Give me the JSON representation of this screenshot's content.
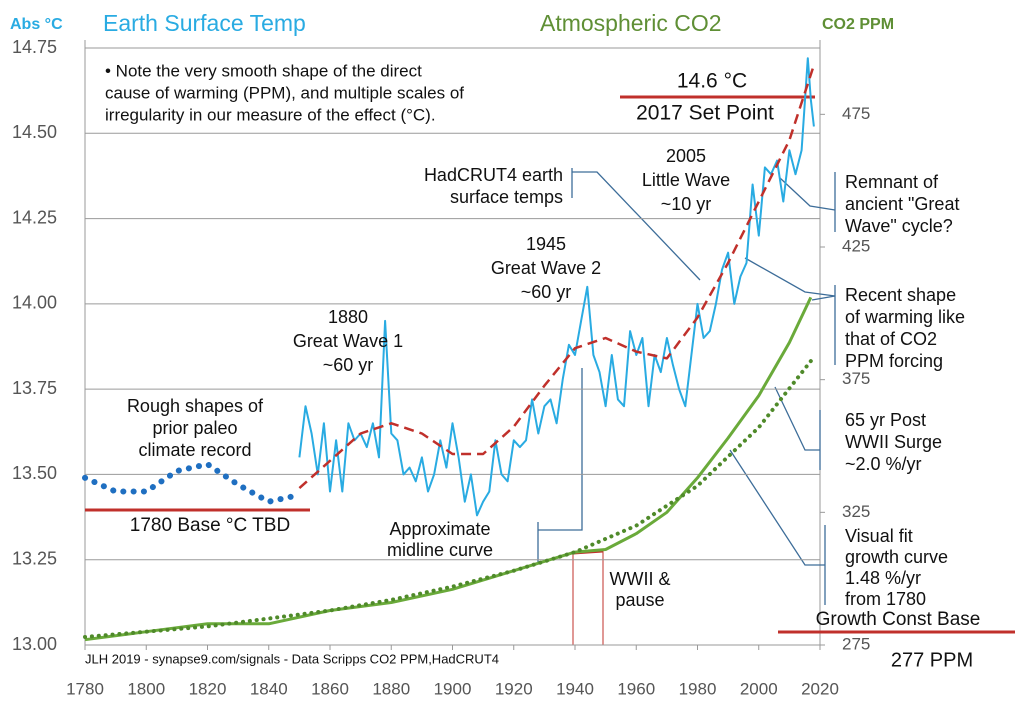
{
  "chart_data": {
    "type": "line",
    "title": "Earth Surface Temp",
    "y_label": "Abs °C",
    "y2_title": "Atmospheric CO2",
    "y2_label": "CO2 PPM",
    "xlim": [
      1780,
      2020
    ],
    "xticks": [
      1780,
      1800,
      1820,
      1840,
      1860,
      1880,
      1900,
      1920,
      1940,
      1960,
      1980,
      2000,
      2020
    ],
    "ylim": [
      13.0,
      14.75
    ],
    "yticks": [
      {
        "value": 13,
        "label": "13.00"
      },
      {
        "value": 13.25,
        "label": "13.25"
      },
      {
        "value": 13.5,
        "label": "13.50"
      },
      {
        "value": 13.75,
        "label": "13.75"
      },
      {
        "value": 14,
        "label": "14.00"
      },
      {
        "value": 14.25,
        "label": "14.25"
      },
      {
        "value": 14.5,
        "label": "14.50"
      },
      {
        "value": 14.75,
        "label": "14.75"
      }
    ],
    "y2lim": [
      275,
      500
    ],
    "y2ticks": [
      275,
      325,
      375,
      425,
      475
    ],
    "grid": true,
    "series": [
      {
        "color": "#29abe2",
        "dash": "solid",
        "width": 2,
        "x": [
          1850,
          1852,
          1854,
          1856,
          1858,
          1860,
          1862,
          1864,
          1866,
          1868,
          1870,
          1872,
          1874,
          1876,
          1878,
          1880,
          1882,
          1884,
          1886,
          1888,
          1890,
          1892,
          1894,
          1896,
          1898,
          1900,
          1902,
          1904,
          1906,
          1908,
          1910,
          1912,
          1914,
          1916,
          1918,
          1920,
          1922,
          1924,
          1926,
          1928,
          1930,
          1932,
          1934,
          1936,
          1938,
          1940,
          1942,
          1944,
          1946,
          1948,
          1950,
          1952,
          1954,
          1956,
          1958,
          1960,
          1962,
          1964,
          1966,
          1968,
          1970,
          1972,
          1974,
          1976,
          1978,
          1980,
          1982,
          1984,
          1986,
          1988,
          1990,
          1992,
          1994,
          1996,
          1998,
          2000,
          2002,
          2004,
          2006,
          2008,
          2010,
          2012,
          2014,
          2016,
          2017,
          2018
        ],
        "values": [
          13.55,
          13.7,
          13.62,
          13.5,
          13.65,
          13.45,
          13.6,
          13.45,
          13.65,
          13.6,
          13.62,
          13.58,
          13.65,
          13.55,
          13.95,
          13.62,
          13.6,
          13.5,
          13.52,
          13.48,
          13.55,
          13.45,
          13.5,
          13.6,
          13.52,
          13.65,
          13.55,
          13.42,
          13.5,
          13.38,
          13.42,
          13.45,
          13.6,
          13.5,
          13.48,
          13.6,
          13.58,
          13.6,
          13.72,
          13.62,
          13.7,
          13.72,
          13.65,
          13.78,
          13.88,
          13.85,
          13.95,
          14.05,
          13.85,
          13.8,
          13.7,
          13.85,
          13.72,
          13.7,
          13.92,
          13.85,
          13.9,
          13.7,
          13.85,
          13.8,
          13.9,
          13.82,
          13.75,
          13.7,
          13.85,
          14.0,
          13.9,
          13.92,
          14.0,
          14.1,
          14.15,
          14.0,
          14.08,
          14.12,
          14.35,
          14.2,
          14.4,
          14.38,
          14.42,
          14.3,
          14.45,
          14.38,
          14.45,
          14.72,
          14.6,
          14.52
        ]
      },
      {
        "color": "#c0302b",
        "dash": "dashed",
        "width": 2.5,
        "x": [
          1850,
          1860,
          1870,
          1880,
          1890,
          1900,
          1910,
          1920,
          1930,
          1940,
          1950,
          1960,
          1970,
          1980,
          1990,
          2000,
          2010,
          2018
        ],
        "values": [
          13.46,
          13.54,
          13.62,
          13.65,
          13.62,
          13.56,
          13.56,
          13.64,
          13.76,
          13.87,
          13.9,
          13.86,
          13.84,
          13.96,
          14.12,
          14.3,
          14.48,
          14.7
        ]
      },
      {
        "color": "#1f6fc1",
        "dash": "dotted",
        "width": 6,
        "x": [
          1780,
          1790,
          1800,
          1810,
          1820,
          1830,
          1840,
          1850
        ],
        "values": [
          13.49,
          13.45,
          13.45,
          13.51,
          13.53,
          13.47,
          13.42,
          13.44
        ]
      },
      {
        "color": "#6aaa3a",
        "dash": "solid",
        "width": 3,
        "axis": "y2",
        "x": [
          1780,
          1800,
          1820,
          1840,
          1860,
          1880,
          1900,
          1920,
          1940,
          1950,
          1960,
          1970,
          1980,
          1990,
          2000,
          2010,
          2017
        ],
        "values": [
          277,
          280,
          283,
          283,
          288,
          291,
          296,
          303,
          310,
          311,
          317,
          325,
          338,
          353,
          369,
          389,
          406
        ]
      },
      {
        "color": "#4f8a2a",
        "dash": "dotted",
        "width": 4,
        "axis": "y2",
        "x": [
          1780,
          1800,
          1820,
          1840,
          1860,
          1880,
          1900,
          1920,
          1940,
          1960,
          1980,
          2000,
          2017
        ],
        "values": [
          278,
          280,
          282,
          285,
          288,
          292,
          297,
          303,
          310,
          320,
          335,
          357,
          382
        ]
      }
    ],
    "annotations": [
      [
        "• Note the very smooth shape of the direct",
        "cause of warming (PPM), and multiple scales of",
        "irregularity in our measure of the effect (°C)."
      ],
      [
        "14.6 °C"
      ],
      [
        "2017 Set Point"
      ],
      [
        "HadCRUT4 earth",
        "surface temps"
      ],
      [
        "2005",
        "Little Wave",
        "~10 yr"
      ],
      [
        "1945",
        "Great Wave 2",
        "~60 yr"
      ],
      [
        "1880",
        "Great Wave 1",
        "~60 yr"
      ],
      [
        "Rough shapes of",
        "prior paleo",
        "climate record"
      ],
      [
        "1780 Base °C TBD"
      ],
      [
        "Approximate",
        "midline curve"
      ],
      [
        "WWII &",
        "pause"
      ],
      [
        "Remnant of",
        "ancient \"Great",
        "Wave\" cycle?"
      ],
      [
        "Recent shape",
        "of warming like",
        "that of CO2",
        "PPM forcing"
      ],
      [
        "65 yr Post",
        "WWII Surge",
        "~2.0 %/yr"
      ],
      [
        "Visual fit",
        "growth curve",
        "1.48 %/yr",
        "from 1780"
      ],
      [
        "Growth Const Base"
      ],
      [
        "277 PPM"
      ],
      [
        "JLH 2019 - synapse9.com/signals -  Data Scripps  CO2 PPM,HadCRUT4"
      ]
    ]
  }
}
